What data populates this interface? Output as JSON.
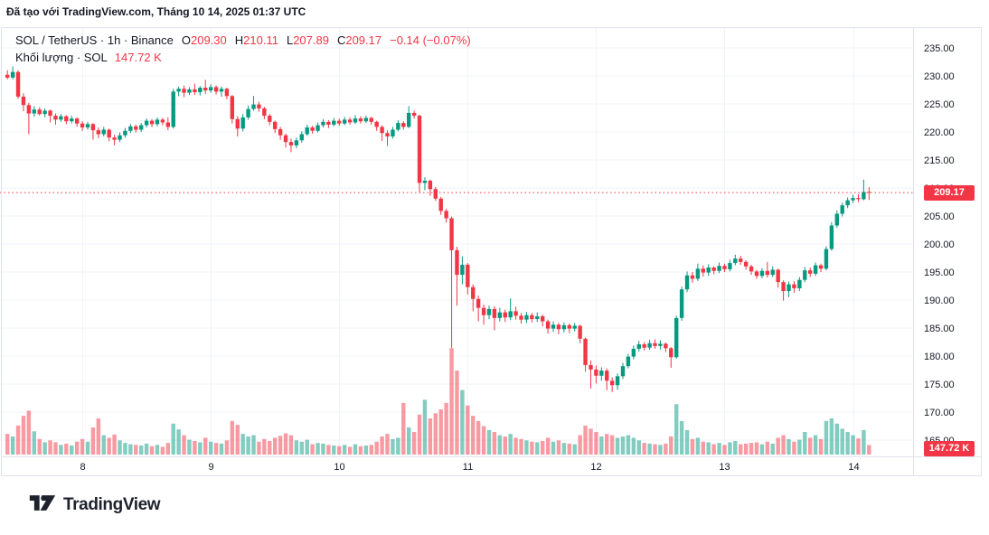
{
  "attribution": "Đã tạo với TradingView.com, Tháng 10 14, 2025 01:37 UTC",
  "legend": {
    "title": "SOL / TetherUS · 1h · Binance",
    "open_label": "O",
    "open": "209.30",
    "high_label": "H",
    "high": "210.11",
    "low_label": "L",
    "low": "207.89",
    "close_label": "C",
    "close": "209.17",
    "change": "−0.14 (−0.07%)",
    "volume_title": "Khối lượng · SOL",
    "volume_value": "147.72 K"
  },
  "price_scale": {
    "tick_labels": [
      "235.00",
      "230.00",
      "225.00",
      "220.00",
      "215.00",
      "210.00",
      "205.00",
      "200.00",
      "195.00",
      "190.00",
      "185.00",
      "180.00",
      "175.00",
      "170.00",
      "165.00"
    ],
    "current_price_label": "209.17"
  },
  "time_scale": {
    "tick_labels": [
      "8",
      "9",
      "10",
      "11",
      "12",
      "13",
      "14"
    ]
  },
  "volume_scale": {
    "current_volume_label": "147.72 K"
  },
  "logo": {
    "brand": "TradingView"
  },
  "colors": {
    "up": "#089981",
    "down": "#f23645",
    "accent": "#f23645",
    "text": "#131722",
    "grid": "#f0f3fa",
    "border": "#e0e3eb",
    "vol_up": "rgba(8,153,129,0.5)",
    "vol_down": "rgba(242,54,69,0.5)"
  },
  "chart_data": {
    "type": "candlestick",
    "symbol": "SOL / TetherUS",
    "interval": "1h",
    "exchange": "Binance",
    "title": "SOL / TetherUS · 1h · Binance",
    "price_axis": {
      "min": 165,
      "max": 235,
      "step": 5
    },
    "current_price": 209.17,
    "current_volume_k": 147.72,
    "grid": true,
    "legend_position": "top-left",
    "day_ticks": [
      {
        "label": "8",
        "index": 14
      },
      {
        "label": "9",
        "index": 38
      },
      {
        "label": "10",
        "index": 62
      },
      {
        "label": "11",
        "index": 86
      },
      {
        "label": "12",
        "index": 110
      },
      {
        "label": "13",
        "index": 134
      },
      {
        "label": "14",
        "index": 158
      }
    ],
    "candles_format": [
      "open",
      "high",
      "low",
      "close",
      "volume_k"
    ],
    "candles": [
      [
        230.2,
        231.0,
        229.4,
        229.7,
        320
      ],
      [
        229.7,
        231.7,
        229.4,
        230.7,
        280
      ],
      [
        230.7,
        231.0,
        225.9,
        226.3,
        450
      ],
      [
        226.3,
        226.9,
        223.7,
        224.8,
        600
      ],
      [
        224.8,
        225.2,
        219.6,
        223.3,
        680
      ],
      [
        223.3,
        224.6,
        222.7,
        224.0,
        360
      ],
      [
        224.0,
        224.4,
        222.9,
        223.2,
        240
      ],
      [
        223.2,
        224.2,
        222.6,
        223.8,
        190
      ],
      [
        223.8,
        224.0,
        221.7,
        222.9,
        220
      ],
      [
        222.9,
        223.3,
        221.3,
        222.2,
        190
      ],
      [
        222.2,
        223.2,
        221.8,
        222.8,
        150
      ],
      [
        222.8,
        223.0,
        221.4,
        221.9,
        170
      ],
      [
        221.9,
        222.9,
        221.5,
        222.4,
        140
      ],
      [
        222.4,
        222.6,
        220.9,
        221.5,
        200
      ],
      [
        221.5,
        221.9,
        220.2,
        220.8,
        240
      ],
      [
        220.8,
        221.8,
        220.4,
        221.4,
        200
      ],
      [
        221.4,
        221.6,
        218.6,
        220.3,
        420
      ],
      [
        220.3,
        220.8,
        218.9,
        219.6,
        560
      ],
      [
        219.6,
        220.9,
        219.2,
        220.4,
        300
      ],
      [
        220.4,
        220.6,
        218.3,
        219.0,
        260
      ],
      [
        219.0,
        219.5,
        217.6,
        218.6,
        310
      ],
      [
        218.6,
        219.9,
        218.2,
        219.4,
        220
      ],
      [
        219.4,
        220.7,
        219.0,
        220.2,
        180
      ],
      [
        220.2,
        221.4,
        219.8,
        221.0,
        160
      ],
      [
        221.0,
        221.3,
        219.9,
        220.4,
        150
      ],
      [
        220.4,
        221.6,
        220.0,
        221.2,
        140
      ],
      [
        221.2,
        222.4,
        220.8,
        222.0,
        170
      ],
      [
        222.0,
        222.3,
        220.9,
        221.4,
        130
      ],
      [
        221.4,
        222.6,
        221.0,
        222.2,
        150
      ],
      [
        222.2,
        222.5,
        221.2,
        221.7,
        120
      ],
      [
        221.7,
        222.6,
        220.3,
        220.9,
        180
      ],
      [
        220.9,
        227.7,
        220.6,
        227.2,
        480
      ],
      [
        227.2,
        228.1,
        226.4,
        227.7,
        390
      ],
      [
        227.7,
        228.3,
        226.2,
        227.0,
        300
      ],
      [
        227.0,
        228.0,
        226.6,
        227.6,
        230
      ],
      [
        227.6,
        228.6,
        226.6,
        227.1,
        210
      ],
      [
        227.1,
        228.2,
        226.5,
        227.9,
        190
      ],
      [
        227.9,
        229.3,
        226.8,
        227.4,
        260
      ],
      [
        227.4,
        228.5,
        227.0,
        228.0,
        200
      ],
      [
        228.0,
        228.3,
        226.7,
        227.2,
        180
      ],
      [
        227.2,
        228.1,
        226.3,
        227.7,
        170
      ],
      [
        227.7,
        227.9,
        225.8,
        226.4,
        220
      ],
      [
        226.4,
        226.6,
        221.5,
        222.3,
        520
      ],
      [
        222.3,
        222.8,
        219.2,
        220.6,
        460
      ],
      [
        220.6,
        223.2,
        220.1,
        222.6,
        320
      ],
      [
        222.6,
        224.7,
        222.2,
        224.1,
        280
      ],
      [
        224.1,
        226.4,
        223.8,
        224.9,
        300
      ],
      [
        224.9,
        225.4,
        223.6,
        224.2,
        200
      ],
      [
        224.2,
        224.5,
        222.3,
        222.9,
        240
      ],
      [
        222.9,
        223.2,
        221.2,
        221.8,
        210
      ],
      [
        221.8,
        222.0,
        219.8,
        220.5,
        260
      ],
      [
        220.5,
        220.9,
        218.6,
        219.4,
        290
      ],
      [
        219.4,
        219.7,
        217.2,
        218.2,
        330
      ],
      [
        218.2,
        218.8,
        216.4,
        217.6,
        300
      ],
      [
        217.6,
        219.0,
        217.1,
        218.5,
        220
      ],
      [
        218.5,
        220.1,
        218.1,
        219.6,
        200
      ],
      [
        219.6,
        221.3,
        219.3,
        220.8,
        230
      ],
      [
        220.8,
        221.1,
        219.7,
        220.2,
        160
      ],
      [
        220.2,
        221.7,
        219.9,
        221.2,
        180
      ],
      [
        221.2,
        222.3,
        220.8,
        221.8,
        170
      ],
      [
        221.8,
        222.1,
        220.7,
        221.3,
        150
      ],
      [
        221.3,
        222.5,
        221.0,
        222.0,
        140
      ],
      [
        222.0,
        222.4,
        221.1,
        221.5,
        130
      ],
      [
        221.5,
        222.7,
        221.2,
        222.2,
        150
      ],
      [
        222.2,
        222.6,
        221.3,
        221.7,
        120
      ],
      [
        221.7,
        223.0,
        221.4,
        222.4,
        160
      ],
      [
        222.4,
        222.8,
        221.5,
        221.9,
        130
      ],
      [
        221.9,
        222.9,
        221.6,
        222.5,
        140
      ],
      [
        222.5,
        222.7,
        221.3,
        221.8,
        150
      ],
      [
        221.8,
        222.0,
        220.2,
        220.9,
        200
      ],
      [
        220.9,
        221.2,
        218.4,
        219.8,
        280
      ],
      [
        219.8,
        220.3,
        217.5,
        219.2,
        320
      ],
      [
        219.2,
        220.9,
        218.8,
        220.4,
        240
      ],
      [
        220.4,
        222.1,
        220.1,
        221.6,
        260
      ],
      [
        221.6,
        221.9,
        220.4,
        220.9,
        800
      ],
      [
        220.9,
        224.6,
        220.7,
        223.4,
        420
      ],
      [
        223.4,
        223.8,
        222.4,
        222.9,
        350
      ],
      [
        222.9,
        223.1,
        209.2,
        210.9,
        620
      ],
      [
        210.9,
        211.9,
        209.6,
        211.3,
        850
      ],
      [
        211.3,
        211.5,
        208.6,
        209.8,
        560
      ],
      [
        209.8,
        210.2,
        207.7,
        208.1,
        640
      ],
      [
        208.1,
        208.4,
        205.2,
        205.9,
        700
      ],
      [
        205.9,
        206.3,
        203.8,
        204.6,
        800
      ],
      [
        204.6,
        204.9,
        181.5,
        198.9,
        1650
      ],
      [
        198.9,
        199.5,
        189.0,
        194.5,
        1300
      ],
      [
        194.5,
        197.8,
        192.8,
        196.3,
        1000
      ],
      [
        196.3,
        196.6,
        191.0,
        192.3,
        760
      ],
      [
        192.3,
        192.8,
        188.0,
        190.2,
        600
      ],
      [
        190.2,
        190.8,
        186.2,
        188.6,
        520
      ],
      [
        188.6,
        189.2,
        185.6,
        187.3,
        440
      ],
      [
        187.3,
        189.0,
        186.6,
        188.4,
        380
      ],
      [
        188.4,
        188.9,
        184.6,
        186.8,
        350
      ],
      [
        186.8,
        188.6,
        186.2,
        187.8,
        300
      ],
      [
        187.8,
        188.3,
        186.1,
        186.9,
        280
      ],
      [
        186.9,
        190.3,
        186.4,
        188.0,
        320
      ],
      [
        188.0,
        188.8,
        186.5,
        187.2,
        260
      ],
      [
        187.2,
        187.7,
        185.8,
        186.5,
        240
      ],
      [
        186.5,
        187.9,
        185.9,
        187.3,
        220
      ],
      [
        187.3,
        187.7,
        186.0,
        186.6,
        200
      ],
      [
        186.6,
        187.8,
        186.1,
        187.1,
        190
      ],
      [
        187.1,
        187.4,
        185.3,
        186.2,
        210
      ],
      [
        186.2,
        186.5,
        184.0,
        184.9,
        260
      ],
      [
        184.9,
        186.2,
        184.3,
        185.6,
        200
      ],
      [
        185.6,
        185.9,
        183.9,
        184.8,
        220
      ],
      [
        184.8,
        186.0,
        184.2,
        185.5,
        180
      ],
      [
        185.5,
        185.8,
        184.1,
        184.9,
        170
      ],
      [
        184.9,
        185.9,
        184.4,
        185.4,
        160
      ],
      [
        185.4,
        185.6,
        182.3,
        183.1,
        300
      ],
      [
        183.1,
        183.3,
        177.2,
        178.4,
        450
      ],
      [
        178.4,
        179.2,
        174.2,
        177.6,
        400
      ],
      [
        177.6,
        178.3,
        175.1,
        176.5,
        350
      ],
      [
        176.5,
        178.0,
        175.6,
        177.4,
        280
      ],
      [
        177.4,
        177.8,
        173.9,
        175.6,
        320
      ],
      [
        175.6,
        176.2,
        173.6,
        174.8,
        300
      ],
      [
        174.8,
        176.9,
        174.0,
        176.4,
        260
      ],
      [
        176.4,
        178.8,
        175.9,
        178.2,
        280
      ],
      [
        178.2,
        180.4,
        177.8,
        179.9,
        300
      ],
      [
        179.9,
        181.9,
        179.4,
        181.3,
        260
      ],
      [
        181.3,
        182.7,
        180.8,
        182.1,
        220
      ],
      [
        182.1,
        182.5,
        181.0,
        181.5,
        180
      ],
      [
        181.5,
        182.9,
        181.1,
        182.3,
        170
      ],
      [
        182.3,
        183.0,
        181.3,
        181.8,
        160
      ],
      [
        181.8,
        182.8,
        181.2,
        182.2,
        150
      ],
      [
        182.2,
        182.4,
        180.7,
        181.4,
        170
      ],
      [
        181.4,
        181.6,
        177.9,
        179.8,
        280
      ],
      [
        179.8,
        187.2,
        179.5,
        186.8,
        780
      ],
      [
        186.8,
        192.4,
        186.3,
        191.9,
        520
      ],
      [
        191.9,
        195.1,
        191.4,
        194.4,
        380
      ],
      [
        194.4,
        195.0,
        193.1,
        193.8,
        240
      ],
      [
        193.8,
        196.5,
        193.4,
        195.6,
        260
      ],
      [
        195.6,
        196.2,
        194.2,
        194.9,
        200
      ],
      [
        194.9,
        196.4,
        194.3,
        195.8,
        190
      ],
      [
        195.8,
        196.0,
        194.6,
        195.2,
        160
      ],
      [
        195.2,
        196.7,
        194.8,
        196.1,
        180
      ],
      [
        196.1,
        196.5,
        195.0,
        195.5,
        150
      ],
      [
        195.5,
        197.2,
        195.1,
        196.6,
        190
      ],
      [
        196.6,
        198.1,
        196.2,
        197.4,
        210
      ],
      [
        197.4,
        197.9,
        196.3,
        196.8,
        160
      ],
      [
        196.8,
        197.1,
        195.4,
        196.0,
        170
      ],
      [
        196.0,
        196.3,
        194.5,
        195.1,
        180
      ],
      [
        195.1,
        195.4,
        193.8,
        194.3,
        190
      ],
      [
        194.3,
        195.7,
        193.9,
        195.2,
        160
      ],
      [
        195.2,
        196.8,
        194.0,
        194.5,
        200
      ],
      [
        194.5,
        196.0,
        194.1,
        195.4,
        170
      ],
      [
        195.4,
        195.6,
        192.2,
        193.2,
        260
      ],
      [
        193.2,
        193.5,
        189.9,
        191.6,
        300
      ],
      [
        191.6,
        193.3,
        190.5,
        192.8,
        240
      ],
      [
        192.8,
        193.4,
        191.3,
        192.1,
        200
      ],
      [
        192.1,
        194.1,
        191.6,
        193.6,
        230
      ],
      [
        193.6,
        195.9,
        193.2,
        195.3,
        350
      ],
      [
        195.3,
        195.8,
        194.1,
        194.7,
        260
      ],
      [
        194.7,
        196.7,
        194.3,
        196.2,
        300
      ],
      [
        196.2,
        196.5,
        195.0,
        195.6,
        240
      ],
      [
        195.6,
        199.6,
        195.3,
        199.1,
        520
      ],
      [
        199.1,
        203.9,
        198.8,
        203.3,
        560
      ],
      [
        203.3,
        206.0,
        202.9,
        205.4,
        480
      ],
      [
        205.4,
        207.4,
        204.9,
        206.9,
        400
      ],
      [
        206.9,
        208.3,
        206.4,
        207.8,
        350
      ],
      [
        207.8,
        208.8,
        207.3,
        208.2,
        300
      ],
      [
        208.2,
        208.9,
        207.5,
        208.0,
        250
      ],
      [
        208.0,
        211.5,
        207.8,
        209.3,
        380
      ],
      [
        209.3,
        210.11,
        207.89,
        209.17,
        148
      ]
    ]
  }
}
